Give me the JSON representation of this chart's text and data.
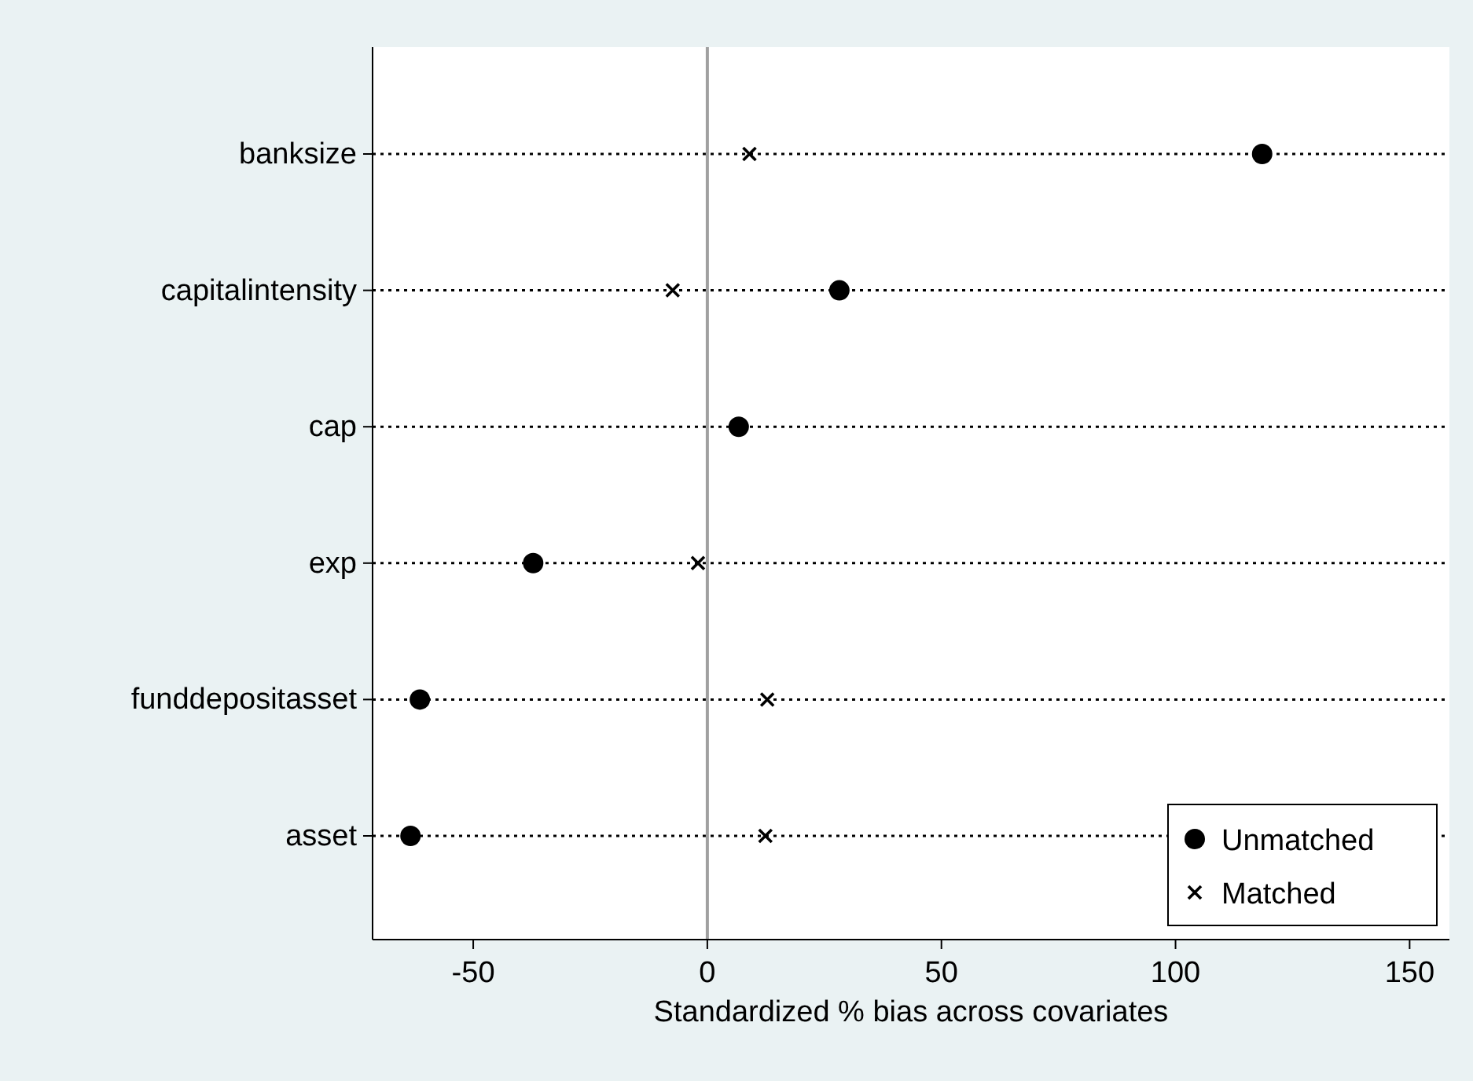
{
  "chart_data": {
    "type": "scatter",
    "xlabel": "Standardized % bias across covariates",
    "categories": [
      "banksize",
      "capitalintensity",
      "cap",
      "exp",
      "funddepositasset",
      "asset"
    ],
    "orientation": "horizontal",
    "xlim": [
      -71.5,
      158.5
    ],
    "xticks": [
      -50,
      0,
      50,
      100,
      150
    ],
    "grid": "y",
    "line_style": "dotted",
    "legend": "bottom right",
    "ref_lines": [
      {
        "axis": "x",
        "value": 0,
        "color": "#a0a0a0"
      }
    ],
    "series": [
      {
        "name": "Unmatched",
        "color": "#000000",
        "marker": "circle",
        "values": [
          118.5,
          28.2,
          6.7,
          -37.2,
          -61.4,
          -63.4
        ]
      },
      {
        "name": "Matched",
        "color": "#000000",
        "marker": "cross",
        "values": [
          9,
          -7.4,
          null,
          -2,
          12.8,
          12.4
        ]
      }
    ]
  }
}
